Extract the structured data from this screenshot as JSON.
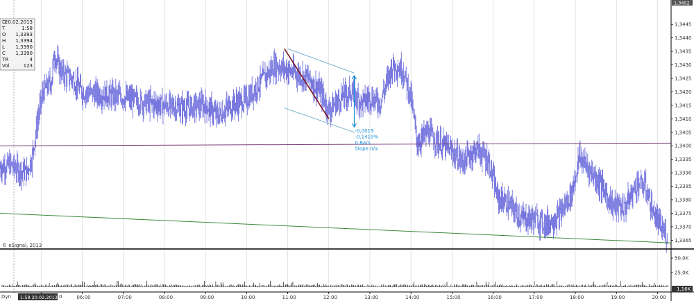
{
  "chart_data": {
    "type": "candlestick-bars",
    "symbol_info": [
      {
        "label": "D",
        "value": "20.02.2013"
      },
      {
        "label": "T",
        "value": "1:58"
      },
      {
        "label": "O",
        "value": "1,3393"
      },
      {
        "label": "H",
        "value": "1,3394"
      },
      {
        "label": "L",
        "value": "1,3390"
      },
      {
        "label": "C",
        "value": "1,3390"
      },
      {
        "label": "TR",
        "value": "4"
      },
      {
        "label": "Vol",
        "value": "123"
      }
    ],
    "copyright": "© eSignal, 2013",
    "price_axis": {
      "ylim": [
        1.3362,
        1.3452
      ],
      "ticks": [
        {
          "v": 1.3445,
          "label": "1,3445"
        },
        {
          "v": 1.344,
          "label": "1,3440"
        },
        {
          "v": 1.3435,
          "label": "1,3435"
        },
        {
          "v": 1.343,
          "label": "1,3430"
        },
        {
          "v": 1.3425,
          "label": "1,3425"
        },
        {
          "v": 1.342,
          "label": "1,3420"
        },
        {
          "v": 1.3415,
          "label": "1,3415"
        },
        {
          "v": 1.341,
          "label": "1,3410"
        },
        {
          "v": 1.3405,
          "label": "1,3405"
        },
        {
          "v": 1.34,
          "label": "1,3400"
        },
        {
          "v": 1.3395,
          "label": "1,3395"
        },
        {
          "v": 1.339,
          "label": "1,3390"
        },
        {
          "v": 1.3385,
          "label": "1,3385"
        },
        {
          "v": 1.338,
          "label": "1,3380"
        },
        {
          "v": 1.3375,
          "label": "1,3375"
        },
        {
          "v": 1.337,
          "label": "1,3370"
        },
        {
          "v": 1.3365,
          "label": "1,3365"
        }
      ],
      "current_price_label": "1,3452"
    },
    "volume_axis": {
      "ylim": [
        0,
        62
      ],
      "ticks": [
        {
          "v": 50,
          "label": "50,0K"
        },
        {
          "v": 25,
          "label": "25,0K"
        }
      ],
      "current_label": "1,16K"
    },
    "time_axis": {
      "xlim": [
        4.0,
        20.33
      ],
      "ticks": [
        {
          "h": 5,
          "label": "05:00"
        },
        {
          "h": 6,
          "label": "06:00"
        },
        {
          "h": 7,
          "label": "07:00"
        },
        {
          "h": 8,
          "label": "08:00"
        },
        {
          "h": 9,
          "label": "09:00"
        },
        {
          "h": 10,
          "label": "10:00"
        },
        {
          "h": 11,
          "label": "11:00"
        },
        {
          "h": 12,
          "label": "12:00"
        },
        {
          "h": 13,
          "label": "13:00"
        },
        {
          "h": 14,
          "label": "14:00"
        },
        {
          "h": 15,
          "label": "15:00"
        },
        {
          "h": 16,
          "label": "16:00"
        },
        {
          "h": 17,
          "label": "17:00"
        },
        {
          "h": 18,
          "label": "18:00"
        },
        {
          "h": 19,
          "label": "19:00"
        },
        {
          "h": 20,
          "label": "20:00"
        }
      ],
      "cursor_label": "1:58 20.02.2013",
      "left_edge_label": "0",
      "dyn_label": "Dyn"
    },
    "price_path": [
      [
        4.0,
        1.3392
      ],
      [
        4.25,
        1.3393
      ],
      [
        4.45,
        1.3391
      ],
      [
        4.65,
        1.339
      ],
      [
        4.78,
        1.3396
      ],
      [
        4.93,
        1.3411
      ],
      [
        5.05,
        1.342
      ],
      [
        5.25,
        1.3424
      ],
      [
        5.32,
        1.3434
      ],
      [
        5.5,
        1.3427
      ],
      [
        5.75,
        1.3425
      ],
      [
        6.0,
        1.342
      ],
      [
        6.5,
        1.3419
      ],
      [
        7.0,
        1.3418
      ],
      [
        7.5,
        1.3416
      ],
      [
        8.0,
        1.3415
      ],
      [
        8.5,
        1.3414
      ],
      [
        9.0,
        1.3415
      ],
      [
        9.3,
        1.3411
      ],
      [
        9.6,
        1.3415
      ],
      [
        10.0,
        1.3417
      ],
      [
        10.3,
        1.3423
      ],
      [
        10.7,
        1.343
      ],
      [
        11.0,
        1.3428
      ],
      [
        11.5,
        1.3425
      ],
      [
        11.8,
        1.342
      ],
      [
        12.0,
        1.3413
      ],
      [
        12.3,
        1.3418
      ],
      [
        12.55,
        1.342
      ],
      [
        12.8,
        1.3416
      ],
      [
        13.0,
        1.3418
      ],
      [
        13.25,
        1.3416
      ],
      [
        13.55,
        1.343
      ],
      [
        13.8,
        1.3428
      ],
      [
        14.0,
        1.3418
      ],
      [
        14.15,
        1.3401
      ],
      [
        14.4,
        1.3405
      ],
      [
        14.7,
        1.3401
      ],
      [
        15.0,
        1.3398
      ],
      [
        15.25,
        1.3394
      ],
      [
        15.6,
        1.3399
      ],
      [
        15.9,
        1.3394
      ],
      [
        16.1,
        1.3381
      ],
      [
        16.4,
        1.3378
      ],
      [
        16.7,
        1.3373
      ],
      [
        17.0,
        1.3373
      ],
      [
        17.3,
        1.3371
      ],
      [
        17.6,
        1.3374
      ],
      [
        17.9,
        1.3382
      ],
      [
        18.1,
        1.3396
      ],
      [
        18.35,
        1.3391
      ],
      [
        18.6,
        1.3386
      ],
      [
        18.9,
        1.3378
      ],
      [
        19.2,
        1.3377
      ],
      [
        19.5,
        1.3386
      ],
      [
        19.7,
        1.3385
      ],
      [
        19.9,
        1.3375
      ],
      [
        20.1,
        1.3369
      ],
      [
        20.25,
        1.3366
      ]
    ],
    "horizontal_level": {
      "color": "#7a3f7a",
      "p1": [
        4.0,
        1.34
      ],
      "p2": [
        20.33,
        1.3401
      ]
    },
    "trendline_green": {
      "color": "#3d8a3d",
      "p1": [
        4.0,
        1.3375
      ],
      "p2": [
        20.33,
        1.3364
      ]
    },
    "channel": {
      "color": "#7fb3d0",
      "upper": {
        "p1": [
          11.0,
          1.3436
        ],
        "p2": [
          12.62,
          1.3427
        ]
      },
      "lower": {
        "p1": [
          10.92,
          1.3414
        ],
        "p2": [
          12.62,
          1.3405
        ]
      }
    },
    "trend_arrow": {
      "color": "#7a1020",
      "p1": [
        10.92,
        1.3436
      ],
      "p2": [
        12.0,
        1.341
      ]
    },
    "measure": {
      "color": "#1a8fd8",
      "p1": [
        12.62,
        1.3426
      ],
      "p2": [
        12.62,
        1.3407
      ],
      "lines": [
        "-0,0019",
        "-0,1419%",
        "0 Bars",
        "Slope n/a"
      ]
    },
    "colors": {
      "bars": "#6b6bdc",
      "axis": "#000000",
      "grid": "#d0d0d0",
      "volume": "#111111"
    }
  }
}
